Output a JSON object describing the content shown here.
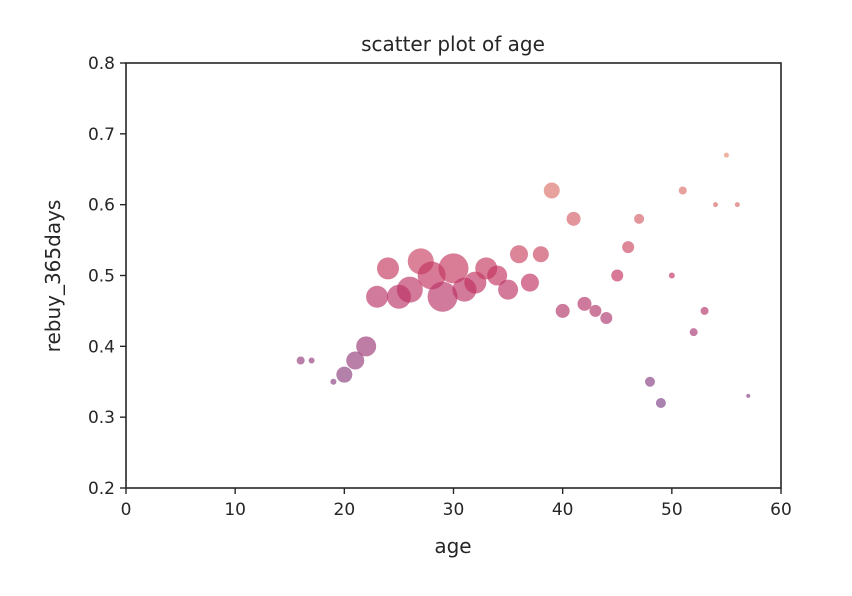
{
  "chart_data": {
    "type": "scatter",
    "title": "scatter plot of age",
    "xlabel": "age",
    "ylabel": "rebuy_365days",
    "xlim": [
      0,
      60
    ],
    "ylim": [
      0.2,
      0.8
    ],
    "xticks": [
      0,
      10,
      20,
      30,
      40,
      50,
      60
    ],
    "yticks": [
      0.2,
      0.3,
      0.4,
      0.5,
      0.6,
      0.7,
      0.8
    ],
    "xtick_labels": [
      "0",
      "10",
      "20",
      "30",
      "40",
      "50",
      "60"
    ],
    "ytick_labels": [
      "0.2",
      "0.3",
      "0.4",
      "0.5",
      "0.6",
      "0.7",
      "0.8"
    ],
    "grid": false,
    "legend": "none",
    "color_scale": {
      "low": "#7b3f86",
      "mid": "#c2305f",
      "high": "#e58a6b"
    },
    "points": [
      {
        "x": 16,
        "y": 0.38,
        "size": 4,
        "color_value": 0.38
      },
      {
        "x": 17,
        "y": 0.38,
        "size": 3,
        "color_value": 0.38
      },
      {
        "x": 19,
        "y": 0.35,
        "size": 3,
        "color_value": 0.35
      },
      {
        "x": 20,
        "y": 0.36,
        "size": 8,
        "color_value": 0.36
      },
      {
        "x": 21,
        "y": 0.38,
        "size": 9,
        "color_value": 0.38
      },
      {
        "x": 22,
        "y": 0.4,
        "size": 10,
        "color_value": 0.4
      },
      {
        "x": 23,
        "y": 0.47,
        "size": 11,
        "color_value": 0.47
      },
      {
        "x": 24,
        "y": 0.51,
        "size": 11,
        "color_value": 0.51
      },
      {
        "x": 25,
        "y": 0.47,
        "size": 12,
        "color_value": 0.47
      },
      {
        "x": 26,
        "y": 0.48,
        "size": 13,
        "color_value": 0.48
      },
      {
        "x": 27,
        "y": 0.52,
        "size": 13,
        "color_value": 0.52
      },
      {
        "x": 28,
        "y": 0.5,
        "size": 14,
        "color_value": 0.5
      },
      {
        "x": 29,
        "y": 0.47,
        "size": 15,
        "color_value": 0.47
      },
      {
        "x": 30,
        "y": 0.51,
        "size": 15,
        "color_value": 0.51
      },
      {
        "x": 31,
        "y": 0.48,
        "size": 12,
        "color_value": 0.48
      },
      {
        "x": 32,
        "y": 0.49,
        "size": 11,
        "color_value": 0.49
      },
      {
        "x": 33,
        "y": 0.51,
        "size": 11,
        "color_value": 0.51
      },
      {
        "x": 34,
        "y": 0.5,
        "size": 10,
        "color_value": 0.5
      },
      {
        "x": 35,
        "y": 0.48,
        "size": 10,
        "color_value": 0.48
      },
      {
        "x": 36,
        "y": 0.53,
        "size": 9,
        "color_value": 0.53
      },
      {
        "x": 37,
        "y": 0.49,
        "size": 9,
        "color_value": 0.49
      },
      {
        "x": 38,
        "y": 0.53,
        "size": 8,
        "color_value": 0.53
      },
      {
        "x": 39,
        "y": 0.62,
        "size": 8,
        "color_value": 0.62
      },
      {
        "x": 40,
        "y": 0.45,
        "size": 7,
        "color_value": 0.45
      },
      {
        "x": 41,
        "y": 0.58,
        "size": 7,
        "color_value": 0.58
      },
      {
        "x": 42,
        "y": 0.46,
        "size": 7,
        "color_value": 0.46
      },
      {
        "x": 43,
        "y": 0.45,
        "size": 6,
        "color_value": 0.45
      },
      {
        "x": 44,
        "y": 0.44,
        "size": 6,
        "color_value": 0.44
      },
      {
        "x": 45,
        "y": 0.5,
        "size": 6,
        "color_value": 0.5
      },
      {
        "x": 46,
        "y": 0.54,
        "size": 6,
        "color_value": 0.54
      },
      {
        "x": 47,
        "y": 0.58,
        "size": 5,
        "color_value": 0.58
      },
      {
        "x": 48,
        "y": 0.35,
        "size": 5,
        "color_value": 0.35
      },
      {
        "x": 49,
        "y": 0.32,
        "size": 5,
        "color_value": 0.32
      },
      {
        "x": 50,
        "y": 0.5,
        "size": 3,
        "color_value": 0.5
      },
      {
        "x": 51,
        "y": 0.62,
        "size": 4,
        "color_value": 0.62
      },
      {
        "x": 52,
        "y": 0.42,
        "size": 4,
        "color_value": 0.42
      },
      {
        "x": 53,
        "y": 0.45,
        "size": 4,
        "color_value": 0.45
      },
      {
        "x": 54,
        "y": 0.6,
        "size": 2.5,
        "color_value": 0.6
      },
      {
        "x": 55,
        "y": 0.67,
        "size": 2.5,
        "color_value": 0.67
      },
      {
        "x": 56,
        "y": 0.6,
        "size": 2.5,
        "color_value": 0.6
      },
      {
        "x": 57,
        "y": 0.33,
        "size": 2,
        "color_value": 0.33
      }
    ]
  }
}
